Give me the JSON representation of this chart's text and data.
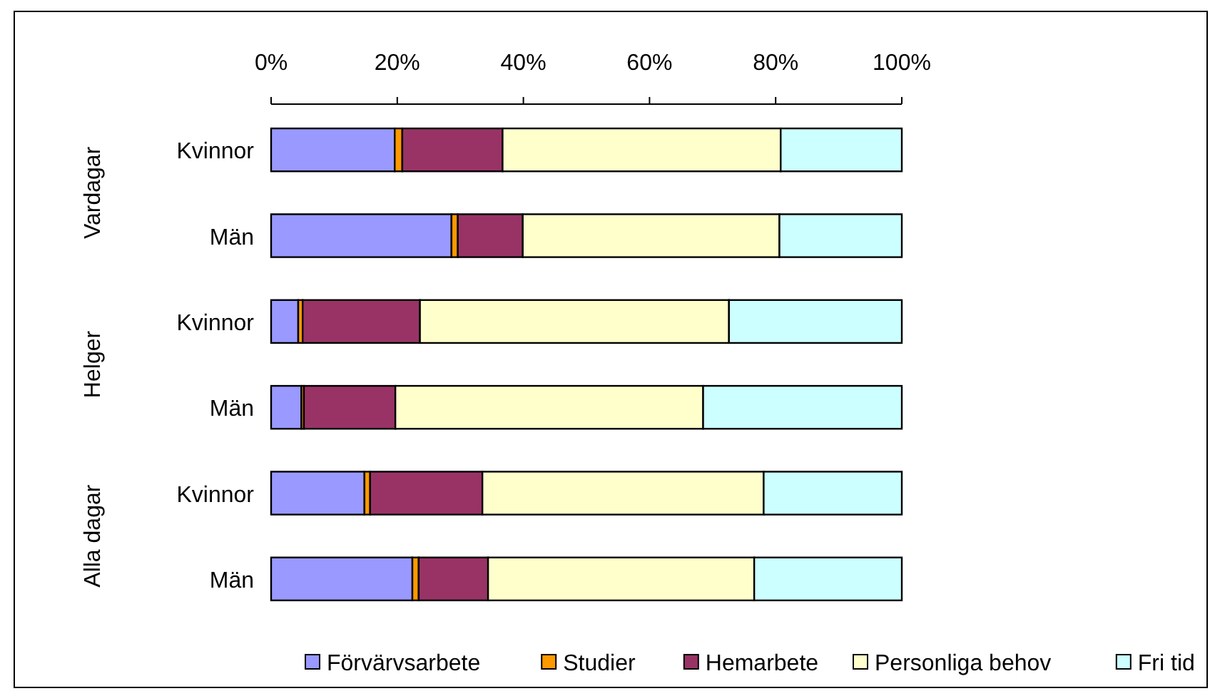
{
  "chart_data": {
    "type": "bar",
    "orientation": "horizontal",
    "stacked": true,
    "categories": [
      "Kvinnor",
      "Män",
      "Kvinnor",
      "Män",
      "Kvinnor",
      "Män"
    ],
    "series": [
      {
        "name": "Förvärvsarbete",
        "color": "#9999ff",
        "values": [
          19.6,
          28.6,
          4.3,
          4.8,
          14.8,
          22.4
        ]
      },
      {
        "name": "Studier",
        "color": "#ff9900",
        "values": [
          1.2,
          1.0,
          0.7,
          0.4,
          0.9,
          1.0
        ]
      },
      {
        "name": "Hemarbete",
        "color": "#993366",
        "values": [
          15.9,
          10.3,
          18.6,
          14.5,
          17.8,
          11.0
        ]
      },
      {
        "name": "Personliga behov",
        "color": "#ffffcc",
        "values": [
          44.1,
          40.7,
          49.0,
          48.8,
          44.6,
          42.2
        ]
      },
      {
        "name": "Fri tid",
        "color": "#ccffff",
        "values": [
          19.2,
          19.4,
          27.4,
          31.5,
          21.9,
          23.4
        ]
      }
    ],
    "annotations": [
      "Vardagar",
      "Helger",
      "Alla dagar"
    ],
    "xlim": [
      0,
      100
    ],
    "xticks": [
      {
        "value": 0,
        "label": "0%"
      },
      {
        "value": 20,
        "label": "20%"
      },
      {
        "value": 40,
        "label": "40%"
      },
      {
        "value": 60,
        "label": "60%"
      },
      {
        "value": 80,
        "label": "80%"
      },
      {
        "value": 100,
        "label": "100%"
      }
    ],
    "legend": "bottom",
    "grid": false
  }
}
